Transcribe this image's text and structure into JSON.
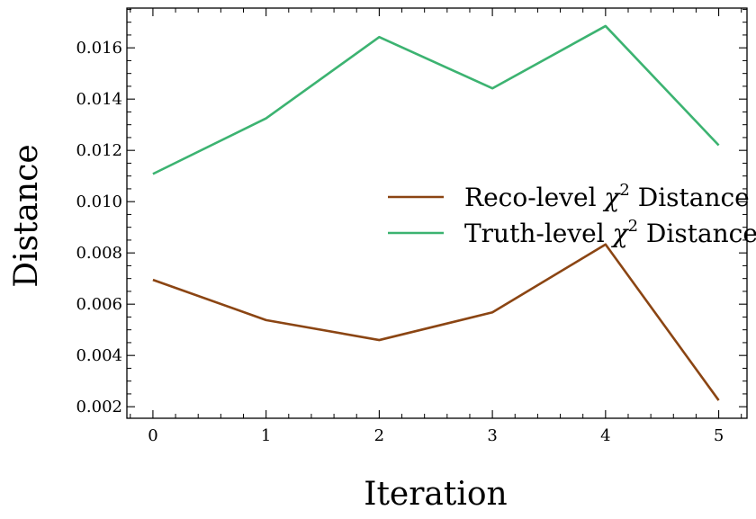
{
  "chart_data": {
    "type": "line",
    "xlabel": "Iteration",
    "ylabel": "Distance",
    "x": [
      0,
      1,
      2,
      3,
      4,
      5
    ],
    "xlim": [
      -0.23,
      5.25
    ],
    "ylim": [
      0.00155,
      0.01755
    ],
    "x_ticks": [
      "0",
      "1",
      "2",
      "3",
      "4",
      "5"
    ],
    "y_ticks": [
      "0.002",
      "0.004",
      "0.006",
      "0.008",
      "0.010",
      "0.012",
      "0.014",
      "0.016"
    ],
    "legend_position": "center-right",
    "grid": false,
    "series": [
      {
        "name": "Reco-level",
        "name_math": "χ",
        "name_sup": "2",
        "name_tail": "Distance",
        "color": "#8b4513",
        "values": [
          0.00695,
          0.00538,
          0.0046,
          0.00568,
          0.00833,
          0.00225
        ]
      },
      {
        "name": "Truth-level",
        "name_math": "χ",
        "name_sup": "2",
        "name_tail": "Distance",
        "color": "#3cb371",
        "values": [
          0.01108,
          0.01325,
          0.01642,
          0.01442,
          0.01685,
          0.0122
        ]
      }
    ]
  }
}
